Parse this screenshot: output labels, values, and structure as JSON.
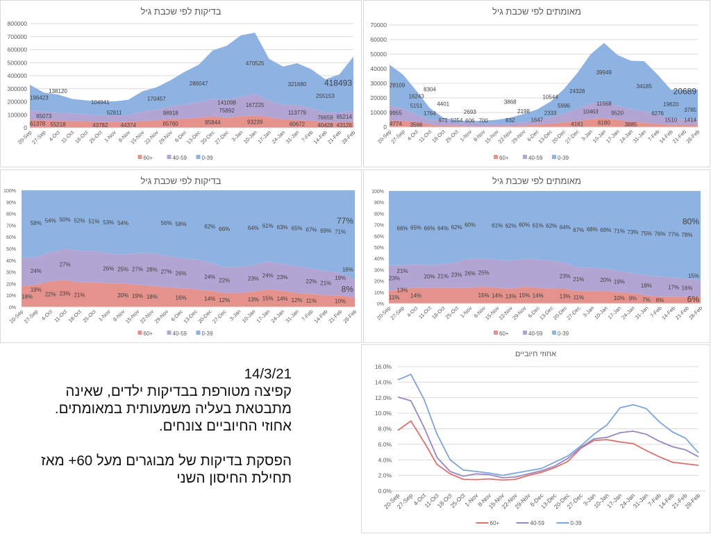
{
  "note": {
    "date": "14/3/21",
    "paragraph1": "קפיצה מטורפת בבדיקות ילדים, שאינה מתבטאת בעליה משמעותית במאומתים. אחוזי החיוביים צונחים.",
    "paragraph2": "הפסקת בדיקות של מבוגרים מעל 60+ מאז תחילת החיסון השני"
  },
  "chart_data": [
    {
      "type": "area",
      "stacking": "normal",
      "title": "בדיקות לפי שכבת גיל",
      "categories": [
        "20-Sep",
        "27-Sep",
        "4-Oct",
        "11-Oct",
        "18-Oct",
        "25-Oct",
        "1-Nov",
        "8-Nov",
        "15-Nov",
        "22-Nov",
        "29-Nov",
        "6-Dec",
        "13-Dec",
        "20-Dec",
        "27-Dec",
        "3-Jan",
        "10-Jan",
        "17-Jan",
        "24-Jan",
        "31-Jan",
        "7-Feb",
        "14-Feb",
        "21-Feb",
        "28-Feb"
      ],
      "ylim": [
        0,
        800000
      ],
      "y_ticks": [
        "0",
        "100000",
        "200000",
        "300000",
        "400000",
        "500000",
        "600000",
        "700000",
        "800000"
      ],
      "grid": true,
      "legend": "bottom",
      "series": [
        {
          "name": "60+",
          "color": "#e5928c",
          "values": [
            61378,
            58000,
            55218,
            52000,
            48000,
            43782,
            43000,
            44374,
            52000,
            58000,
            65760,
            70000,
            78000,
            85844,
            75892,
            88000,
            93239,
            80000,
            65000,
            60672,
            55000,
            40428,
            42000,
            43126
          ],
          "label_indices": [
            0,
            2,
            5,
            7,
            10,
            13,
            14,
            16,
            19,
            21,
            23
          ]
        },
        {
          "name": "40-59",
          "color": "#b3a5d3",
          "values": [
            72000,
            65073,
            62000,
            60000,
            56000,
            53000,
            52811,
            55000,
            70000,
            82000,
            98918,
            110000,
            120000,
            135000,
            141098,
            150000,
            167225,
            130000,
            110000,
            113779,
            95000,
            76659,
            78000,
            85214
          ],
          "label_indices": [
            1,
            6,
            10,
            14,
            16,
            19,
            21,
            23
          ]
        },
        {
          "name": "0-39",
          "color": "#8eb2e1",
          "values": [
            196423,
            147000,
            138120,
            110000,
            106000,
            104941,
            107000,
            116000,
            158000,
            170457,
            200000,
            250000,
            286047,
            374000,
            413000,
            472000,
            470525,
            320000,
            295000,
            321680,
            300000,
            255153,
            290000,
            418493
          ],
          "label_indices": [
            0,
            2,
            5,
            9,
            12,
            16,
            19,
            21,
            23
          ]
        }
      ]
    },
    {
      "type": "area",
      "stacking": "normal",
      "title": "מאומתים לפי שכבת גיל",
      "categories": [
        "20-Sep",
        "27-Sep",
        "4-Oct",
        "11-Oct",
        "18-Oct",
        "25-Oct",
        "1-Nov",
        "8-Nov",
        "15-Nov",
        "22-Nov",
        "29-Nov",
        "6-Dec",
        "13-Dec",
        "20-Dec",
        "27-Dec",
        "3-Jan",
        "10-Jan",
        "17-Jan",
        "24-Jan",
        "31-Jan",
        "7-Feb",
        "14-Feb",
        "21-Feb",
        "28-Feb"
      ],
      "ylim": [
        0,
        70000
      ],
      "y_ticks": [
        "0",
        "10000",
        "20000",
        "30000",
        "40000",
        "50000",
        "60000",
        "70000"
      ],
      "grid": true,
      "legend": "bottom",
      "series": [
        {
          "name": "60+",
          "color": "#e5928c",
          "values": [
            4774,
            4300,
            3566,
            1764,
            971,
            1054,
            606,
            700,
            700,
            832,
            1200,
            1647,
            2333,
            3200,
            4161,
            5500,
            6180,
            5000,
            3885,
            3000,
            2200,
            1510,
            1450,
            1414
          ],
          "label_indices": [
            0,
            2,
            3,
            4,
            5,
            6,
            7,
            9,
            11,
            12,
            14,
            16,
            18,
            21,
            23
          ]
        },
        {
          "name": "40-59",
          "color": "#b3a5d3",
          "values": [
            9955,
            8500,
            5151,
            3000,
            4401,
            1800,
            2693,
            1500,
            1500,
            1700,
            2198,
            3000,
            4500,
            5996,
            8500,
            10463,
            11568,
            9520,
            8500,
            8000,
            6276,
            4500,
            4000,
            3785
          ],
          "label_indices": [
            0,
            2,
            4,
            6,
            10,
            13,
            15,
            16,
            17,
            20,
            23
          ]
        },
        {
          "name": "0-39",
          "color": "#8eb2e1",
          "values": [
            28109,
            23200,
            16243,
            8304,
            1130,
            1650,
            900,
            2100,
            2800,
            3868,
            5600,
            7350,
            10544,
            16800,
            24328,
            34000,
            39949,
            35000,
            33100,
            34185,
            27500,
            19620,
            20000,
            20689
          ],
          "label_indices": [
            0,
            2,
            3,
            9,
            12,
            14,
            16,
            19,
            21,
            23
          ]
        }
      ]
    },
    {
      "type": "area",
      "stacking": "percent",
      "title": "בדיקות לפי שכבת גיל",
      "categories": [
        "20-Sep",
        "27-Sep",
        "4-Oct",
        "11-Oct",
        "18-Oct",
        "25-Oct",
        "1-Nov",
        "8-Nov",
        "15-Nov",
        "22-Nov",
        "29-Nov",
        "6-Dec",
        "13-Dec",
        "20-Dec",
        "27-Dec",
        "3-Jan",
        "10-Jan",
        "17-Jan",
        "24-Jan",
        "31-Jan",
        "7-Feb",
        "14-Feb",
        "21-Feb",
        "28-Feb"
      ],
      "ylim": [
        0,
        100
      ],
      "y_ticks": [
        "0%",
        "10%",
        "20%",
        "30%",
        "40%",
        "50%",
        "60%",
        "70%",
        "80%",
        "90%",
        "100%"
      ],
      "grid": false,
      "legend": "bottom",
      "value_suffix": "%",
      "series": [
        {
          "name": "60+",
          "color": "#e5928c",
          "values": [
            18,
            19,
            22,
            23,
            21,
            21,
            20,
            20,
            19,
            18,
            17,
            16,
            15,
            14,
            12,
            12,
            13,
            15,
            14,
            12,
            11,
            10,
            10,
            8
          ],
          "label_indices": [
            0,
            1,
            2,
            3,
            4,
            7,
            8,
            9,
            11,
            13,
            14,
            16,
            17,
            18,
            19,
            20,
            22,
            23
          ]
        },
        {
          "name": "40-59",
          "color": "#b3a5d3",
          "values": [
            24,
            24,
            25,
            27,
            27,
            27,
            26,
            25,
            27,
            28,
            27,
            26,
            26,
            24,
            22,
            22,
            23,
            24,
            23,
            23,
            22,
            21,
            19,
            16
          ],
          "label_indices": [
            1,
            3,
            6,
            7,
            8,
            9,
            10,
            11,
            13,
            14,
            16,
            17,
            18,
            20,
            21,
            22,
            23
          ]
        },
        {
          "name": "0-39",
          "color": "#8eb2e1",
          "values": [
            58,
            58,
            54,
            50,
            52,
            51,
            53,
            54,
            54,
            54,
            56,
            58,
            59,
            62,
            66,
            66,
            64,
            61,
            63,
            65,
            67,
            69,
            71,
            77
          ],
          "label_indices": [
            1,
            2,
            3,
            4,
            5,
            6,
            7,
            10,
            11,
            13,
            14,
            16,
            17,
            18,
            19,
            20,
            21,
            22,
            23
          ]
        }
      ]
    },
    {
      "type": "area",
      "stacking": "percent",
      "title": "מאומתים לפי שכבת גיל",
      "categories": [
        "20-Sep",
        "27-Sep",
        "4-Oct",
        "11-Oct",
        "18-Oct",
        "25-Oct",
        "1-Nov",
        "8-Nov",
        "15-Nov",
        "22-Nov",
        "29-Nov",
        "6-Dec",
        "13-Dec",
        "20-Dec",
        "27-Dec",
        "3-Jan",
        "10-Jan",
        "17-Jan",
        "24-Jan",
        "31-Jan",
        "7-Feb",
        "14-Feb",
        "21-Feb",
        "28-Feb"
      ],
      "ylim": [
        0,
        100
      ],
      "y_ticks": [
        "0%",
        "10%",
        "20%",
        "30%",
        "40%",
        "50%",
        "60%",
        "70%",
        "80%",
        "90%",
        "100%"
      ],
      "grid": false,
      "legend": "bottom",
      "value_suffix": "%",
      "series": [
        {
          "name": "60+",
          "color": "#e5928c",
          "values": [
            11,
            13,
            14,
            14,
            14,
            14,
            14,
            15,
            14,
            13,
            15,
            14,
            13,
            13,
            11,
            11,
            11,
            10,
            9,
            7,
            6,
            6,
            6,
            6
          ],
          "label_indices": [
            0,
            1,
            2,
            7,
            8,
            9,
            10,
            11,
            13,
            14,
            17,
            18,
            19,
            20,
            23
          ]
        },
        {
          "name": "40-59",
          "color": "#b3a5d3",
          "values": [
            23,
            21,
            21,
            20,
            21,
            23,
            26,
            25,
            25,
            25,
            25,
            25,
            25,
            23,
            21,
            21,
            20,
            19,
            18,
            18,
            18,
            17,
            16,
            15
          ],
          "label_indices": [
            0,
            1,
            3,
            4,
            5,
            6,
            7,
            13,
            14,
            16,
            17,
            19,
            21,
            22,
            23
          ]
        },
        {
          "name": "0-39",
          "color": "#8eb2e1",
          "values": [
            66,
            66,
            65,
            66,
            64,
            62,
            60,
            60,
            61,
            62,
            60,
            61,
            62,
            64,
            67,
            68,
            69,
            71,
            73,
            75,
            76,
            77,
            78,
            80
          ],
          "label_indices": [
            1,
            2,
            3,
            4,
            5,
            6,
            8,
            9,
            10,
            11,
            12,
            13,
            14,
            15,
            16,
            17,
            18,
            19,
            20,
            21,
            22,
            23
          ]
        }
      ]
    },
    {
      "type": "line",
      "title": "אחוזי חיוביים",
      "categories": [
        "20-Sep",
        "27-Sep",
        "4-Oct",
        "11-Oct",
        "18-Oct",
        "25-Oct",
        "1-Nov",
        "8-Nov",
        "15-Nov",
        "22-Nov",
        "29-Nov",
        "6-Dec",
        "13-Dec",
        "20-Dec",
        "27-Dec",
        "3-Jan",
        "10-Jan",
        "17-Jan",
        "24-Jan",
        "31-Jan",
        "7-Feb",
        "14-Feb",
        "21-Feb",
        "28-Feb"
      ],
      "ylim": [
        0,
        16
      ],
      "y_ticks": [
        "0.0%",
        "2.0%",
        "4.0%",
        "6.0%",
        "8.0%",
        "10.0%",
        "12.0%",
        "14.0%",
        "16.0%"
      ],
      "grid": true,
      "legend": "bottom",
      "series": [
        {
          "name": "60+",
          "color": "#d9726e",
          "values": [
            7.8,
            9.0,
            6.3,
            3.4,
            2.2,
            1.5,
            1.45,
            1.55,
            1.4,
            1.5,
            2.0,
            2.4,
            3.0,
            3.8,
            5.5,
            6.5,
            6.6,
            6.3,
            6.1,
            5.2,
            4.4,
            3.7,
            3.5,
            3.3
          ]
        },
        {
          "name": "40-59",
          "color": "#9885c1",
          "values": [
            12.1,
            11.6,
            8.2,
            4.3,
            2.5,
            1.9,
            2.2,
            2.1,
            1.7,
            1.8,
            2.2,
            2.6,
            3.2,
            4.2,
            5.6,
            6.7,
            6.9,
            7.5,
            7.7,
            7.3,
            6.4,
            5.7,
            5.3,
            4.4
          ]
        },
        {
          "name": "0-39",
          "color": "#7ba4dc",
          "values": [
            14.3,
            15.0,
            11.8,
            7.3,
            4.0,
            2.7,
            2.5,
            2.3,
            2.0,
            2.3,
            2.6,
            2.9,
            3.7,
            4.5,
            5.8,
            7.3,
            8.5,
            10.7,
            11.1,
            10.6,
            8.9,
            7.6,
            6.8,
            4.9
          ]
        }
      ]
    }
  ]
}
